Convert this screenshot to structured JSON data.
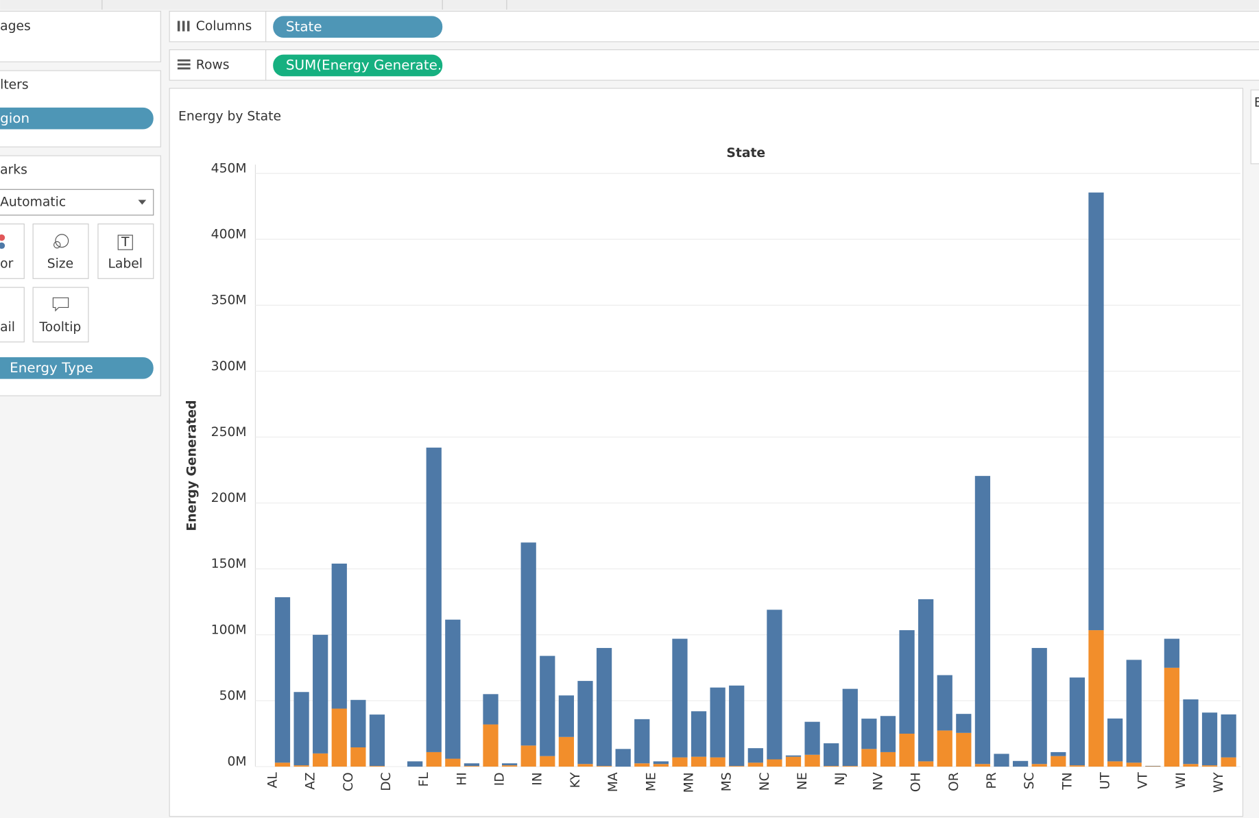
{
  "ui": {
    "pages": "ages",
    "filters": "lters",
    "filter_pill": "gion",
    "marks": "arks",
    "mark_type": "Automatic",
    "mark_buttons": [
      "or",
      "Size",
      "Label",
      "ail",
      "Tooltip"
    ],
    "marks_pill": "Energy Type",
    "columns_label": "Columns",
    "columns_pill": "State",
    "rows_label": "Rows",
    "rows_pill": "SUM(Energy Generate...",
    "legend_title": "E"
  },
  "chart_data": {
    "type": "stacked_bar",
    "title": "Energy by State",
    "x_label": "State",
    "y_label": "Energy Generated",
    "categories": [
      "AL",
      null,
      "AZ",
      null,
      "CO",
      null,
      "DC",
      null,
      "FL",
      null,
      "HI",
      null,
      "ID",
      null,
      "IN",
      null,
      "KY",
      null,
      "MA",
      null,
      "ME",
      null,
      "MN",
      null,
      "MS",
      null,
      "NC",
      null,
      "NE",
      null,
      "NJ",
      null,
      "NV",
      null,
      "OH",
      null,
      "OR",
      null,
      "PR",
      null,
      "SC",
      null,
      "TN",
      null,
      "UT",
      null,
      "VT",
      null,
      "WI",
      null,
      "WY"
    ],
    "series": [
      {
        "color": "#f28e2b",
        "values": [
          3000000,
          1000000,
          10000000,
          44000000,
          14600000,
          500000,
          0,
          0,
          11000000,
          6000000,
          500000,
          32000000,
          1000000,
          16000000,
          8000000,
          22500000,
          2000000,
          500000,
          0,
          2500000,
          2000000,
          7000000,
          7500000,
          7000000,
          500000,
          3000000,
          5500000,
          7500000,
          9000000,
          500000,
          500000,
          13400000,
          11000000,
          25000000,
          4000000,
          27400000,
          25600000,
          2000000,
          0,
          0,
          2000000,
          8000000,
          1000000,
          103500000,
          4000000,
          3000000,
          300000,
          75000000,
          2000000,
          1000000,
          7000000
        ]
      },
      {
        "color": "#4e79a7",
        "values": [
          125500000,
          55600000,
          90000000,
          110000000,
          36000000,
          39000000,
          0,
          4000000,
          231000000,
          105500000,
          2000000,
          23000000,
          1500000,
          154000000,
          76000000,
          31500000,
          63000000,
          89500000,
          13400000,
          33500000,
          2000000,
          90000000,
          34500000,
          53000000,
          61000000,
          11000000,
          113500000,
          1000000,
          25000000,
          17200000,
          58500000,
          23000000,
          27400000,
          78500000,
          123000000,
          42000000,
          14400000,
          218500000,
          9700000,
          4300000,
          88000000,
          3000000,
          66600000,
          332000000,
          32500000,
          78000000,
          300000,
          22000000,
          49000000,
          40000000,
          32600000
        ]
      }
    ],
    "ylim": [
      0,
      450000000
    ],
    "yticks": [
      {
        "value": 0,
        "label": "0M"
      },
      {
        "value": 50000000,
        "label": "50M"
      },
      {
        "value": 100000000,
        "label": "100M"
      },
      {
        "value": 150000000,
        "label": "150M"
      },
      {
        "value": 200000000,
        "label": "200M"
      },
      {
        "value": 250000000,
        "label": "250M"
      },
      {
        "value": 300000000,
        "label": "300M"
      },
      {
        "value": 350000000,
        "label": "350M"
      },
      {
        "value": 400000000,
        "label": "400M"
      },
      {
        "value": 450000000,
        "label": "450M"
      }
    ],
    "grid": true
  }
}
